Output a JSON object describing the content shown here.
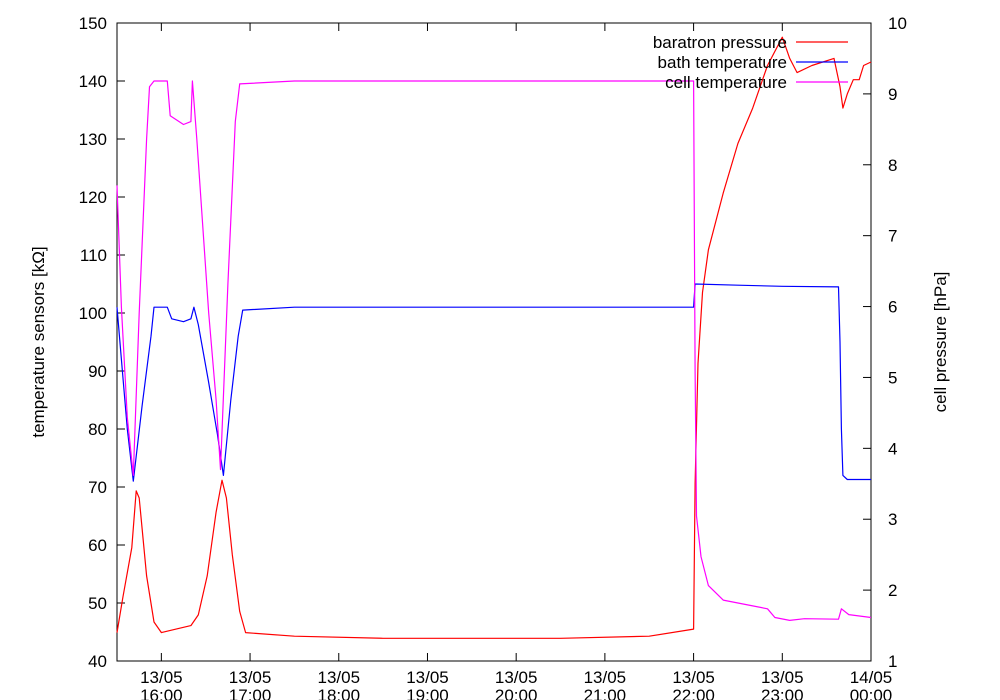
{
  "chart_data": {
    "type": "line",
    "title": "",
    "xlabel": "",
    "ylabel": "temperature sensors [kΩ]",
    "y2label": "cell pressure [hPa]",
    "ylim": [
      40,
      150
    ],
    "y2lim": [
      1,
      10
    ],
    "xlim": [
      "2013-05-13 15:30",
      "2013-05-14 00:00"
    ],
    "grid": false,
    "legend_position": "top-right",
    "y_ticks": [
      40,
      50,
      60,
      70,
      80,
      90,
      100,
      110,
      120,
      130,
      140,
      150
    ],
    "y2_ticks": [
      1,
      2,
      3,
      4,
      5,
      6,
      7,
      8,
      9,
      10
    ],
    "x_ticks": [
      {
        "x": "2013-05-13 16:00",
        "date": "13/05",
        "time": "16:00"
      },
      {
        "x": "2013-05-13 17:00",
        "date": "13/05",
        "time": "17:00"
      },
      {
        "x": "2013-05-13 18:00",
        "date": "13/05",
        "time": "18:00"
      },
      {
        "x": "2013-05-13 19:00",
        "date": "13/05",
        "time": "19:00"
      },
      {
        "x": "2013-05-13 20:00",
        "date": "13/05",
        "time": "20:00"
      },
      {
        "x": "2013-05-13 21:00",
        "date": "13/05",
        "time": "21:00"
      },
      {
        "x": "2013-05-13 22:00",
        "date": "13/05",
        "time": "22:00"
      },
      {
        "x": "2013-05-13 23:00",
        "date": "13/05",
        "time": "23:00"
      },
      {
        "x": "2013-05-14 00:00",
        "date": "14/05",
        "time": "00:00"
      }
    ],
    "series": [
      {
        "name": "baratron pressure",
        "axis": "y2",
        "color": "#ff0000",
        "points": [
          [
            "2013-05-13 15:30",
            1.4
          ],
          [
            "2013-05-13 15:34",
            1.9
          ],
          [
            "2013-05-13 15:40",
            2.6
          ],
          [
            "2013-05-13 15:43",
            3.4
          ],
          [
            "2013-05-13 15:45",
            3.3
          ],
          [
            "2013-05-13 15:50",
            2.2
          ],
          [
            "2013-05-13 15:55",
            1.55
          ],
          [
            "2013-05-13 16:00",
            1.4
          ],
          [
            "2013-05-13 16:10",
            1.45
          ],
          [
            "2013-05-13 16:20",
            1.5
          ],
          [
            "2013-05-13 16:25",
            1.65
          ],
          [
            "2013-05-13 16:31",
            2.2
          ],
          [
            "2013-05-13 16:37",
            3.1
          ],
          [
            "2013-05-13 16:41",
            3.55
          ],
          [
            "2013-05-13 16:44",
            3.3
          ],
          [
            "2013-05-13 16:48",
            2.5
          ],
          [
            "2013-05-13 16:53",
            1.7
          ],
          [
            "2013-05-13 16:57",
            1.4
          ],
          [
            "2013-05-13 17:30",
            1.35
          ],
          [
            "2013-05-13 18:30",
            1.32
          ],
          [
            "2013-05-13 19:30",
            1.32
          ],
          [
            "2013-05-13 20:30",
            1.32
          ],
          [
            "2013-05-13 21:30",
            1.35
          ],
          [
            "2013-05-13 22:00",
            1.45
          ],
          [
            "2013-05-13 22:01",
            3.5
          ],
          [
            "2013-05-13 22:03",
            5.2
          ],
          [
            "2013-05-13 22:06",
            6.2
          ],
          [
            "2013-05-13 22:10",
            6.8
          ],
          [
            "2013-05-13 22:20",
            7.6
          ],
          [
            "2013-05-13 22:30",
            8.3
          ],
          [
            "2013-05-13 22:40",
            8.8
          ],
          [
            "2013-05-13 22:50",
            9.4
          ],
          [
            "2013-05-13 23:00",
            9.8
          ],
          [
            "2013-05-13 23:05",
            9.5
          ],
          [
            "2013-05-13 23:10",
            9.3
          ],
          [
            "2013-05-13 23:20",
            9.4
          ],
          [
            "2013-05-13 23:35",
            9.5
          ],
          [
            "2013-05-13 23:39",
            9.1
          ],
          [
            "2013-05-13 23:41",
            8.8
          ],
          [
            "2013-05-13 23:44",
            9.0
          ],
          [
            "2013-05-13 23:48",
            9.2
          ],
          [
            "2013-05-13 23:52",
            9.2
          ],
          [
            "2013-05-13 23:55",
            9.4
          ],
          [
            "2013-05-14 00:00",
            9.45
          ]
        ]
      },
      {
        "name": "bath temperature",
        "axis": "y",
        "color": "#0000ff",
        "points": [
          [
            "2013-05-13 15:30",
            101
          ],
          [
            "2013-05-13 15:33",
            92
          ],
          [
            "2013-05-13 15:37",
            80
          ],
          [
            "2013-05-13 15:41",
            71
          ],
          [
            "2013-05-13 15:47",
            84
          ],
          [
            "2013-05-13 15:53",
            96
          ],
          [
            "2013-05-13 15:55",
            101
          ],
          [
            "2013-05-13 16:04",
            101
          ],
          [
            "2013-05-13 16:07",
            99
          ],
          [
            "2013-05-13 16:15",
            98.5
          ],
          [
            "2013-05-13 16:20",
            99
          ],
          [
            "2013-05-13 16:22",
            101
          ],
          [
            "2013-05-13 16:25",
            98
          ],
          [
            "2013-05-13 16:32",
            88
          ],
          [
            "2013-05-13 16:38",
            79
          ],
          [
            "2013-05-13 16:42",
            72
          ],
          [
            "2013-05-13 16:47",
            85
          ],
          [
            "2013-05-13 16:52",
            96
          ],
          [
            "2013-05-13 16:55",
            100.5
          ],
          [
            "2013-05-13 17:30",
            101
          ],
          [
            "2013-05-13 19:00",
            101
          ],
          [
            "2013-05-13 21:00",
            101
          ],
          [
            "2013-05-13 22:00",
            101
          ],
          [
            "2013-05-13 22:01",
            105
          ],
          [
            "2013-05-13 22:30",
            104.8
          ],
          [
            "2013-05-13 23:00",
            104.6
          ],
          [
            "2013-05-13 23:38",
            104.5
          ],
          [
            "2013-05-13 23:39",
            95
          ],
          [
            "2013-05-13 23:40",
            80
          ],
          [
            "2013-05-13 23:41",
            72
          ],
          [
            "2013-05-13 23:44",
            71.3
          ],
          [
            "2013-05-14 00:00",
            71.3
          ]
        ]
      },
      {
        "name": "cell temperature",
        "axis": "y",
        "color": "#ff00ff",
        "points": [
          [
            "2013-05-13 15:30",
            122
          ],
          [
            "2013-05-13 15:33",
            101
          ],
          [
            "2013-05-13 15:37",
            82
          ],
          [
            "2013-05-13 15:41",
            72
          ],
          [
            "2013-05-13 15:45",
            100
          ],
          [
            "2013-05-13 15:50",
            130
          ],
          [
            "2013-05-13 15:52",
            139
          ],
          [
            "2013-05-13 15:55",
            140
          ],
          [
            "2013-05-13 16:04",
            140
          ],
          [
            "2013-05-13 16:06",
            134
          ],
          [
            "2013-05-13 16:15",
            132.5
          ],
          [
            "2013-05-13 16:20",
            133
          ],
          [
            "2013-05-13 16:21",
            140
          ],
          [
            "2013-05-13 16:24",
            130
          ],
          [
            "2013-05-13 16:32",
            100
          ],
          [
            "2013-05-13 16:37",
            85
          ],
          [
            "2013-05-13 16:40",
            73
          ],
          [
            "2013-05-13 16:45",
            105
          ],
          [
            "2013-05-13 16:50",
            133
          ],
          [
            "2013-05-13 16:53",
            139.5
          ],
          [
            "2013-05-13 17:30",
            140
          ],
          [
            "2013-05-13 19:00",
            140
          ],
          [
            "2013-05-13 21:00",
            140
          ],
          [
            "2013-05-13 22:00",
            140
          ],
          [
            "2013-05-13 22:01",
            90
          ],
          [
            "2013-05-13 22:02",
            65
          ],
          [
            "2013-05-13 22:05",
            58
          ],
          [
            "2013-05-13 22:10",
            53
          ],
          [
            "2013-05-13 22:20",
            50.5
          ],
          [
            "2013-05-13 22:40",
            49.5
          ],
          [
            "2013-05-13 22:50",
            49
          ],
          [
            "2013-05-13 22:55",
            47.5
          ],
          [
            "2013-05-13 23:05",
            47
          ],
          [
            "2013-05-13 23:15",
            47.3
          ],
          [
            "2013-05-13 23:38",
            47.2
          ],
          [
            "2013-05-13 23:40",
            49
          ],
          [
            "2013-05-13 23:45",
            48
          ],
          [
            "2013-05-14 00:00",
            47.5
          ]
        ]
      }
    ]
  }
}
